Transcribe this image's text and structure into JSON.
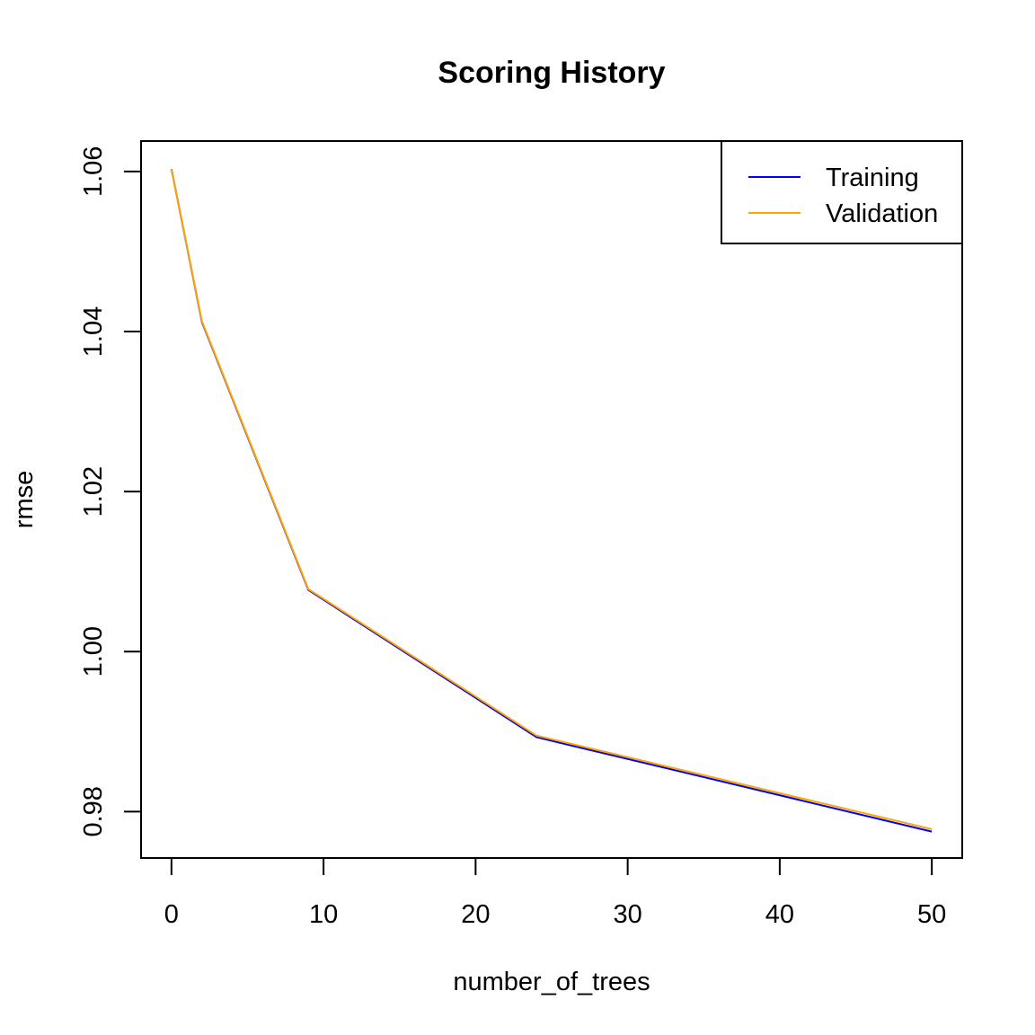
{
  "chart_data": {
    "type": "line",
    "title": "Scoring History",
    "xlabel": "number_of_trees",
    "ylabel": "rmse",
    "xlim": [
      -2,
      52
    ],
    "ylim": [
      0.9742,
      1.0638
    ],
    "x_ticks": [
      0,
      10,
      20,
      30,
      40,
      50
    ],
    "x_tick_labels": [
      "0",
      "10",
      "20",
      "30",
      "40",
      "50"
    ],
    "y_ticks": [
      0.98,
      1.0,
      1.02,
      1.04,
      1.06
    ],
    "y_tick_labels": [
      "0.98",
      "1.00",
      "1.02",
      "1.04",
      "1.06"
    ],
    "grid": false,
    "legend_position": "top-right",
    "series": [
      {
        "name": "Training",
        "color": "#0000ff",
        "x": [
          0,
          2,
          9,
          24,
          50
        ],
        "y": [
          1.0603,
          1.0412,
          1.0077,
          0.9893,
          0.9775
        ]
      },
      {
        "name": "Validation",
        "color": "#ffa500",
        "x": [
          0,
          2,
          9,
          24,
          50
        ],
        "y": [
          1.0603,
          1.0413,
          1.0078,
          0.9895,
          0.9778
        ]
      }
    ]
  }
}
